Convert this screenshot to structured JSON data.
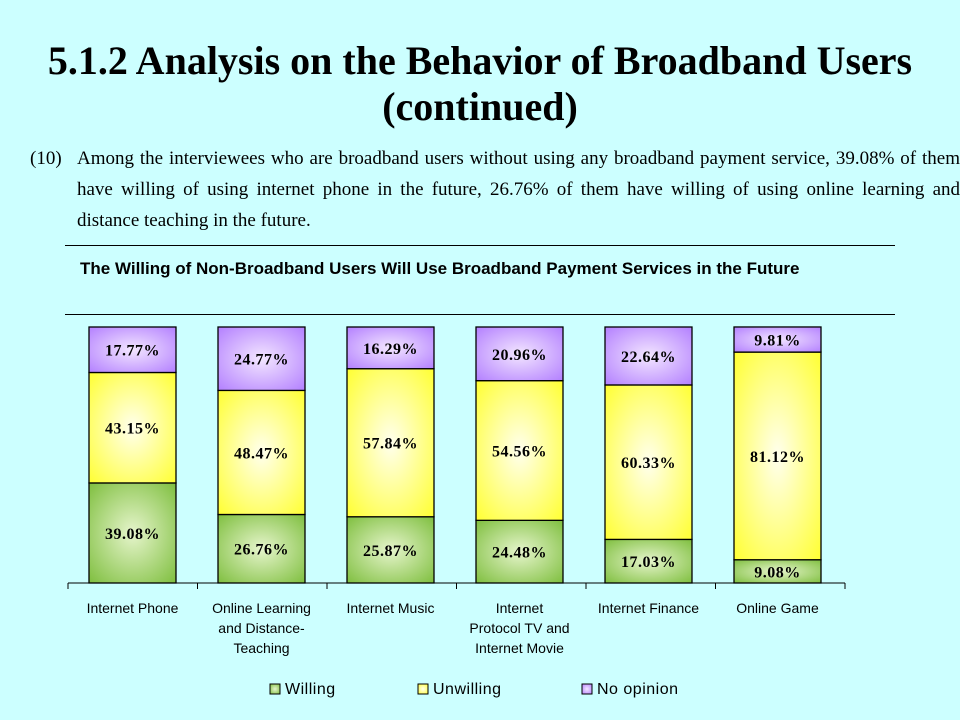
{
  "slide": {
    "title": "5.1.2 Analysis on the Behavior of Broadband Users (continued)",
    "paragraph_number": "(10)",
    "paragraph_text": "Among the interviewees who are broadband users without using any broadband payment service, 39.08% of them have willing of using internet phone in the future, 26.76% of them have willing of using online learning and distance teaching in the future."
  },
  "chart_data": {
    "type": "bar",
    "stacked": true,
    "title": "The Willing of Non-Broadband Users Will Use Broadband Payment Services in the Future",
    "categories": [
      "Internet Phone",
      "Online Learning and Distance-Teaching",
      "Internet Music",
      "Internet Protocol TV and Internet Movie",
      "Internet Finance",
      "Online Game"
    ],
    "category_display_lines": [
      [
        "Internet Phone"
      ],
      [
        "Online Learning",
        "and Distance-",
        "Teaching"
      ],
      [
        "Internet Music"
      ],
      [
        "Internet",
        "Protocol TV and",
        "Internet Movie"
      ],
      [
        "Internet Finance"
      ],
      [
        "Online Game"
      ]
    ],
    "series": [
      {
        "name": "Willing",
        "values": [
          39.08,
          26.76,
          25.87,
          24.48,
          17.03,
          9.08
        ],
        "labels": [
          "39.08%",
          "26.76%",
          "25.87%",
          "24.48%",
          "17.03%",
          "9.08%"
        ],
        "color": "#99cc66"
      },
      {
        "name": "Unwilling",
        "values": [
          43.15,
          48.47,
          57.84,
          54.56,
          60.33,
          81.12
        ],
        "labels": [
          "43.15%",
          "48.47%",
          "57.84%",
          "54.56%",
          "60.33%",
          "81.12%"
        ],
        "color": "#ffff66"
      },
      {
        "name": "No opinion",
        "values": [
          17.77,
          24.77,
          16.29,
          20.96,
          22.64,
          9.81
        ],
        "labels": [
          "17.77%",
          "24.77%",
          "16.29%",
          "20.96%",
          "22.64%",
          "9.81%"
        ],
        "color": "#cc99ff"
      }
    ],
    "ylim": [
      0,
      100
    ],
    "legend": "bottom",
    "grid": false
  }
}
